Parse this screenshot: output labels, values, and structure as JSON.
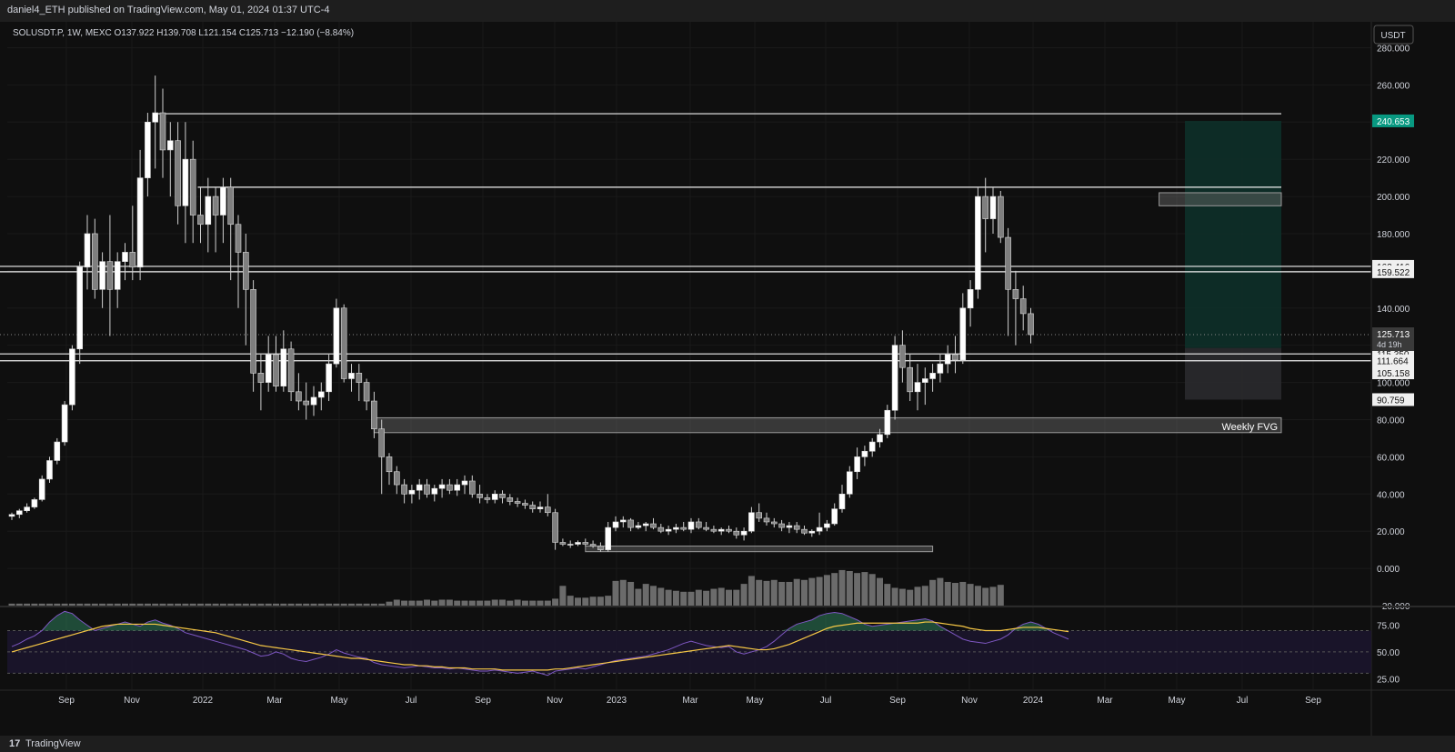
{
  "header": {
    "published": "daniel4_ETH published on TradingView.com, May 01, 2024 01:37 UTC-4"
  },
  "chart_data": {
    "type": "candlestick",
    "symbol": "SOLUSDT.P, 1W, MEXC",
    "ohlc_label": "O137.922  H139.708  L121.154  C125.713  −12.190 (−8.84%)",
    "currency": "USDT",
    "price_ticks": [
      280,
      260,
      240,
      220,
      200,
      180,
      160,
      140,
      120,
      100,
      80,
      60,
      40,
      20,
      0,
      -20
    ],
    "price_tick_labels": [
      "280.000",
      "260.000",
      "240.000",
      "220.000",
      "200.000",
      "180.000",
      "160.000",
      "140.000",
      "120.000",
      "100.000",
      "80.000",
      "60.000",
      "40.000",
      "20.000",
      "0.000",
      "−20.000"
    ],
    "ylim": [
      -20,
      290
    ],
    "x_labels": [
      "Sep",
      "Nov",
      "2022",
      "Mar",
      "May",
      "Jul",
      "Sep",
      "Nov",
      "2023",
      "Mar",
      "May",
      "Jul",
      "Sep",
      "Nov",
      "2024",
      "Mar",
      "May",
      "Jul",
      "Sep"
    ],
    "candles": [
      [
        28,
        30,
        26,
        29
      ],
      [
        29,
        32,
        27,
        31
      ],
      [
        31,
        35,
        30,
        33
      ],
      [
        33,
        38,
        32,
        37
      ],
      [
        37,
        50,
        36,
        48
      ],
      [
        48,
        60,
        46,
        58
      ],
      [
        58,
        70,
        56,
        68
      ],
      [
        68,
        90,
        66,
        88
      ],
      [
        88,
        120,
        85,
        118
      ],
      [
        118,
        165,
        110,
        162
      ],
      [
        162,
        190,
        150,
        180
      ],
      [
        180,
        188,
        145,
        150
      ],
      [
        150,
        170,
        140,
        165
      ],
      [
        165,
        190,
        125,
        150
      ],
      [
        150,
        170,
        140,
        165
      ],
      [
        165,
        175,
        155,
        170
      ],
      [
        170,
        195,
        155,
        162
      ],
      [
        162,
        225,
        155,
        210
      ],
      [
        210,
        245,
        200,
        240
      ],
      [
        240,
        265,
        215,
        245
      ],
      [
        245,
        258,
        210,
        225
      ],
      [
        225,
        240,
        200,
        230
      ],
      [
        230,
        240,
        185,
        195
      ],
      [
        195,
        240,
        175,
        220
      ],
      [
        220,
        230,
        175,
        190
      ],
      [
        190,
        205,
        175,
        185
      ],
      [
        185,
        210,
        170,
        200
      ],
      [
        200,
        205,
        170,
        190
      ],
      [
        190,
        210,
        175,
        205
      ],
      [
        205,
        210,
        155,
        185
      ],
      [
        185,
        190,
        140,
        170
      ],
      [
        170,
        180,
        120,
        150
      ],
      [
        150,
        155,
        95,
        105
      ],
      [
        105,
        115,
        85,
        100
      ],
      [
        100,
        125,
        95,
        115
      ],
      [
        115,
        125,
        95,
        98
      ],
      [
        98,
        128,
        95,
        118
      ],
      [
        118,
        122,
        90,
        95
      ],
      [
        95,
        105,
        85,
        90
      ],
      [
        90,
        100,
        80,
        88
      ],
      [
        88,
        98,
        82,
        92
      ],
      [
        92,
        100,
        85,
        95
      ],
      [
        95,
        115,
        90,
        110
      ],
      [
        110,
        145,
        108,
        140
      ],
      [
        140,
        142,
        100,
        102
      ],
      [
        102,
        110,
        95,
        105
      ],
      [
        105,
        110,
        90,
        100
      ],
      [
        100,
        102,
        85,
        90
      ],
      [
        90,
        95,
        70,
        75
      ],
      [
        75,
        80,
        40,
        60
      ],
      [
        60,
        62,
        45,
        52
      ],
      [
        52,
        55,
        40,
        45
      ],
      [
        45,
        48,
        35,
        40
      ],
      [
        40,
        45,
        35,
        42
      ],
      [
        42,
        48,
        37,
        45
      ],
      [
        45,
        48,
        38,
        40
      ],
      [
        40,
        45,
        36,
        43
      ],
      [
        43,
        48,
        38,
        45
      ],
      [
        45,
        48,
        40,
        42
      ],
      [
        42,
        48,
        39,
        45
      ],
      [
        45,
        50,
        40,
        47
      ],
      [
        47,
        50,
        38,
        40
      ],
      [
        40,
        45,
        35,
        38
      ],
      [
        38,
        40,
        35,
        37
      ],
      [
        37,
        42,
        35,
        40
      ],
      [
        40,
        42,
        35,
        38
      ],
      [
        38,
        40,
        34,
        36
      ],
      [
        36,
        38,
        33,
        35
      ],
      [
        35,
        37,
        32,
        34
      ],
      [
        34,
        36,
        30,
        32
      ],
      [
        32,
        36,
        30,
        33
      ],
      [
        33,
        40,
        28,
        30
      ],
      [
        30,
        32,
        10,
        14
      ],
      [
        14,
        16,
        12,
        13
      ],
      [
        13,
        15,
        11,
        13
      ],
      [
        13,
        15,
        12,
        14
      ],
      [
        14,
        16,
        12,
        13
      ],
      [
        13,
        15,
        11,
        12
      ],
      [
        12,
        14,
        9,
        10
      ],
      [
        10,
        25,
        9,
        22
      ],
      [
        22,
        28,
        20,
        25
      ],
      [
        25,
        28,
        22,
        26
      ],
      [
        26,
        27,
        20,
        22
      ],
      [
        22,
        25,
        21,
        23
      ],
      [
        23,
        25,
        20,
        24
      ],
      [
        24,
        27,
        21,
        22
      ],
      [
        22,
        24,
        19,
        20
      ],
      [
        20,
        23,
        18,
        21
      ],
      [
        21,
        24,
        19,
        22
      ],
      [
        22,
        25,
        20,
        21
      ],
      [
        21,
        27,
        19,
        25
      ],
      [
        25,
        27,
        21,
        22
      ],
      [
        22,
        25,
        20,
        21
      ],
      [
        21,
        23,
        19,
        20
      ],
      [
        20,
        22,
        18,
        21
      ],
      [
        21,
        23,
        19,
        20
      ],
      [
        20,
        22,
        16,
        18
      ],
      [
        18,
        22,
        15,
        20
      ],
      [
        20,
        33,
        19,
        30
      ],
      [
        30,
        35,
        25,
        27
      ],
      [
        27,
        30,
        23,
        25
      ],
      [
        25,
        27,
        22,
        24
      ],
      [
        24,
        26,
        20,
        22
      ],
      [
        22,
        25,
        19,
        23
      ],
      [
        23,
        25,
        19,
        21
      ],
      [
        21,
        23,
        18,
        19
      ],
      [
        19,
        21,
        17,
        20
      ],
      [
        20,
        30,
        18,
        22
      ],
      [
        22,
        26,
        20,
        24
      ],
      [
        24,
        35,
        23,
        32
      ],
      [
        32,
        45,
        30,
        40
      ],
      [
        40,
        55,
        38,
        52
      ],
      [
        52,
        65,
        48,
        60
      ],
      [
        60,
        66,
        55,
        63
      ],
      [
        63,
        70,
        60,
        68
      ],
      [
        68,
        75,
        65,
        72
      ],
      [
        72,
        88,
        70,
        85
      ],
      [
        85,
        125,
        80,
        120
      ],
      [
        120,
        128,
        100,
        108
      ],
      [
        108,
        115,
        90,
        95
      ],
      [
        95,
        110,
        85,
        100
      ],
      [
        100,
        108,
        88,
        102
      ],
      [
        102,
        110,
        95,
        105
      ],
      [
        105,
        115,
        100,
        110
      ],
      [
        110,
        120,
        105,
        115
      ],
      [
        115,
        125,
        105,
        112
      ],
      [
        112,
        148,
        110,
        140
      ],
      [
        140,
        155,
        130,
        150
      ],
      [
        150,
        205,
        145,
        200
      ],
      [
        200,
        210,
        170,
        188
      ],
      [
        188,
        205,
        180,
        200
      ],
      [
        200,
        203,
        175,
        178
      ],
      [
        178,
        183,
        125,
        150
      ],
      [
        150,
        160,
        120,
        145
      ],
      [
        145,
        152,
        128,
        137
      ],
      [
        137,
        140,
        121,
        125.713
      ]
    ],
    "volume": [
      2,
      2,
      2,
      2,
      2,
      2,
      2,
      2,
      2,
      2,
      2,
      2,
      2,
      2,
      2,
      2,
      2,
      2,
      2,
      2,
      2,
      2,
      2,
      2,
      2,
      2,
      2,
      2,
      2,
      2,
      2,
      2,
      2,
      2,
      2,
      2,
      2,
      2,
      2,
      2,
      2,
      2,
      2,
      2,
      2,
      2,
      2,
      2,
      2,
      2,
      4,
      6,
      5,
      5,
      5,
      6,
      5,
      6,
      6,
      5,
      5,
      5,
      5,
      5,
      6,
      6,
      5,
      6,
      5,
      5,
      5,
      5,
      7,
      20,
      10,
      8,
      8,
      9,
      9,
      10,
      25,
      26,
      24,
      17,
      22,
      20,
      18,
      16,
      15,
      14,
      14,
      16,
      15,
      17,
      18,
      16,
      16,
      22,
      30,
      26,
      25,
      26,
      24,
      24,
      27,
      26,
      28,
      29,
      31,
      33,
      36,
      35,
      33,
      34,
      32,
      28,
      22,
      18,
      17,
      16,
      19,
      20,
      26,
      28,
      24,
      23,
      24,
      22,
      20,
      18,
      19,
      21
    ],
    "volume_max": 70,
    "horizontal_levels": [
      {
        "price": 244.5,
        "from_index": 19
      },
      {
        "price": 205,
        "from_index": 25
      },
      {
        "price": 162.416,
        "from_index": 0,
        "label": "162.416"
      },
      {
        "price": 159.522,
        "from_index": 0,
        "label": "159.522"
      },
      {
        "price": 115.35,
        "from_index": 0,
        "label": "115.350"
      },
      {
        "price": 111.664,
        "from_index": 0,
        "label": "111.664"
      },
      {
        "price": 105.158,
        "label": "105.158"
      },
      {
        "price": 90.759,
        "label": "90.759"
      }
    ],
    "zones": [
      {
        "label": "Weekly FVG",
        "top": 81,
        "bottom": 73,
        "from_index": 48
      },
      {
        "top": 202,
        "bottom": 195,
        "from_index": 152
      },
      {
        "top": 12,
        "bottom": 9,
        "from_index": 76,
        "to_index": 122
      }
    ],
    "position": {
      "entry": 118.5,
      "target": 240.653,
      "stop": 90.759,
      "target_label": "240.653"
    },
    "current": {
      "price": 125.713,
      "label": "125.713",
      "countdown": "4d 19h"
    },
    "rsi": {
      "ticks": [
        75,
        50,
        25
      ],
      "tick_labels": [
        "75.00",
        "50.00",
        "25.00"
      ],
      "upper": 70,
      "lower": 30,
      "values": [
        55,
        58,
        62,
        65,
        70,
        78,
        84,
        88,
        86,
        80,
        75,
        70,
        72,
        74,
        76,
        78,
        76,
        74,
        78,
        80,
        77,
        75,
        72,
        68,
        66,
        64,
        62,
        60,
        58,
        56,
        54,
        52,
        49,
        46,
        47,
        50,
        48,
        44,
        42,
        41,
        43,
        45,
        48,
        52,
        49,
        47,
        45,
        44,
        40,
        38,
        37,
        36,
        35,
        36,
        37,
        36,
        35,
        35,
        34,
        35,
        34,
        33,
        32,
        32,
        33,
        32,
        31,
        30,
        31,
        32,
        30,
        28,
        32,
        33,
        34,
        35,
        34,
        36,
        38,
        40,
        42,
        43,
        44,
        45,
        46,
        48,
        50,
        52,
        55,
        58,
        60,
        58,
        56,
        55,
        54,
        55,
        50,
        48,
        50,
        52,
        55,
        60,
        66,
        72,
        76,
        78,
        80,
        84,
        86,
        87,
        86,
        83,
        80,
        76,
        74,
        75,
        76,
        77,
        78,
        79,
        80,
        81,
        79,
        74,
        70,
        66,
        62,
        60,
        59,
        58,
        60,
        62,
        66,
        72,
        76,
        78,
        76,
        72,
        68,
        65,
        62
      ],
      "ma": [
        50,
        52,
        54,
        56,
        58,
        60,
        62,
        64,
        66,
        68,
        70,
        72,
        74,
        75,
        76,
        76,
        76,
        76,
        76,
        76,
        75,
        74,
        73,
        72,
        71,
        70,
        69,
        68,
        66,
        64,
        62,
        60,
        58,
        56,
        55,
        54,
        53,
        52,
        51,
        50,
        49,
        48,
        47,
        46,
        45,
        44,
        44,
        43,
        42,
        41,
        40,
        39,
        38,
        38,
        37,
        37,
        36,
        36,
        35,
        35,
        35,
        34,
        34,
        34,
        34,
        33,
        33,
        33,
        33,
        33,
        33,
        33,
        34,
        34,
        35,
        36,
        37,
        38,
        39,
        40,
        41,
        42,
        43,
        44,
        45,
        46,
        47,
        48,
        49,
        50,
        51,
        52,
        53,
        54,
        55,
        56,
        55,
        54,
        53,
        52,
        52,
        53,
        55,
        57,
        60,
        63,
        66,
        69,
        72,
        74,
        75,
        76,
        77,
        77,
        77,
        77,
        77,
        77,
        77,
        77,
        77,
        78,
        78,
        77,
        76,
        75,
        74,
        72,
        71,
        70,
        70,
        70,
        71,
        72,
        73,
        73,
        73,
        72,
        71,
        70,
        69
      ]
    }
  },
  "logo": {
    "brand": "TradingView",
    "mark": "17"
  },
  "colors": {
    "bg": "#0f0f0f",
    "grid": "#1a1a1a",
    "candle_body": "#e6e6e6",
    "candle_up": "#ffffff",
    "candle_down": "#7f7f7f",
    "volume": "#6b6b6b",
    "level": "#f0f0f0",
    "target_fill": "#0d3029",
    "stop_fill": "#2a2a2e",
    "target_label_bg": "#089981",
    "rsi_line": "#7e57c2",
    "rsi_ma": "#f7c845",
    "rsi_band": "#1b1530"
  }
}
